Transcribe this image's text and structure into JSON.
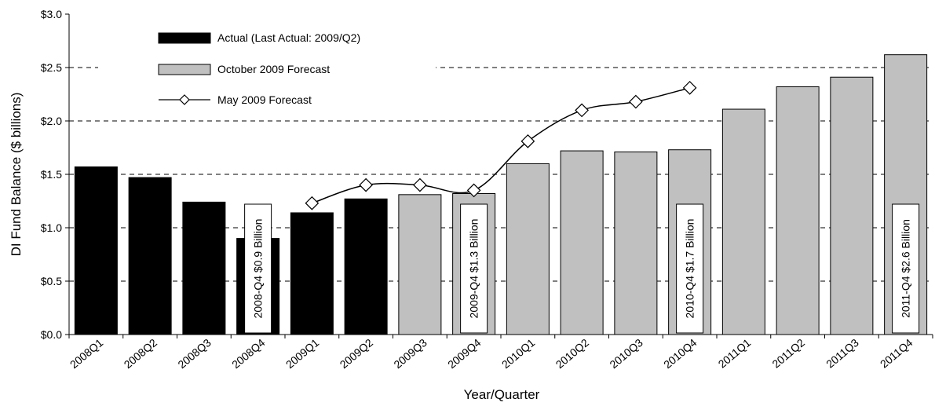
{
  "chart_data": {
    "type": "bar",
    "xlabel": "Year/Quarter",
    "ylabel": "DI Fund Balance ($ billions)",
    "ylim": [
      0,
      3.0
    ],
    "y_ticks": [
      "$0.0",
      "$0.5",
      "$1.0",
      "$1.5",
      "$2.0",
      "$2.5",
      "$3.0"
    ],
    "y_tick_values": [
      0,
      0.5,
      1.0,
      1.5,
      2.0,
      2.5,
      3.0
    ],
    "grid": "dashed horizontal",
    "legend_position": "top-left",
    "categories": [
      "2008Q1",
      "2008Q2",
      "2008Q3",
      "2008Q4",
      "2009Q1",
      "2009Q2",
      "2009Q3",
      "2009Q4",
      "2010Q1",
      "2010Q2",
      "2010Q3",
      "2010Q4",
      "2011Q1",
      "2011Q2",
      "2011Q3",
      "2011Q4"
    ],
    "series": [
      {
        "name": "Actual (Last Actual: 2009/Q2)",
        "type": "bar",
        "color": "#000000",
        "values": [
          1.57,
          1.47,
          1.24,
          0.9,
          1.14,
          1.27,
          null,
          null,
          null,
          null,
          null,
          null,
          null,
          null,
          null,
          null
        ]
      },
      {
        "name": "October 2009 Forecast",
        "type": "bar",
        "color": "#c0c0c0",
        "values": [
          null,
          null,
          null,
          null,
          null,
          null,
          1.31,
          1.32,
          1.6,
          1.72,
          1.71,
          1.73,
          2.11,
          2.32,
          2.41,
          2.62
        ]
      },
      {
        "name": "May 2009 Forecast",
        "type": "line",
        "marker": "diamond",
        "color": "#000000",
        "values": [
          null,
          null,
          null,
          null,
          1.23,
          1.4,
          1.4,
          1.35,
          1.81,
          2.1,
          2.18,
          2.31,
          null,
          null,
          null,
          null
        ]
      }
    ],
    "annotations": [
      {
        "category": "2008Q4",
        "text": "2008-Q4 $0.9 Billion"
      },
      {
        "category": "2009Q4",
        "text": "2009-Q4 $1.3 Billion"
      },
      {
        "category": "2010Q4",
        "text": "2010-Q4 $1.7 Billion"
      },
      {
        "category": "2011Q4",
        "text": "2011-Q4 $2.6 Billion"
      }
    ]
  }
}
